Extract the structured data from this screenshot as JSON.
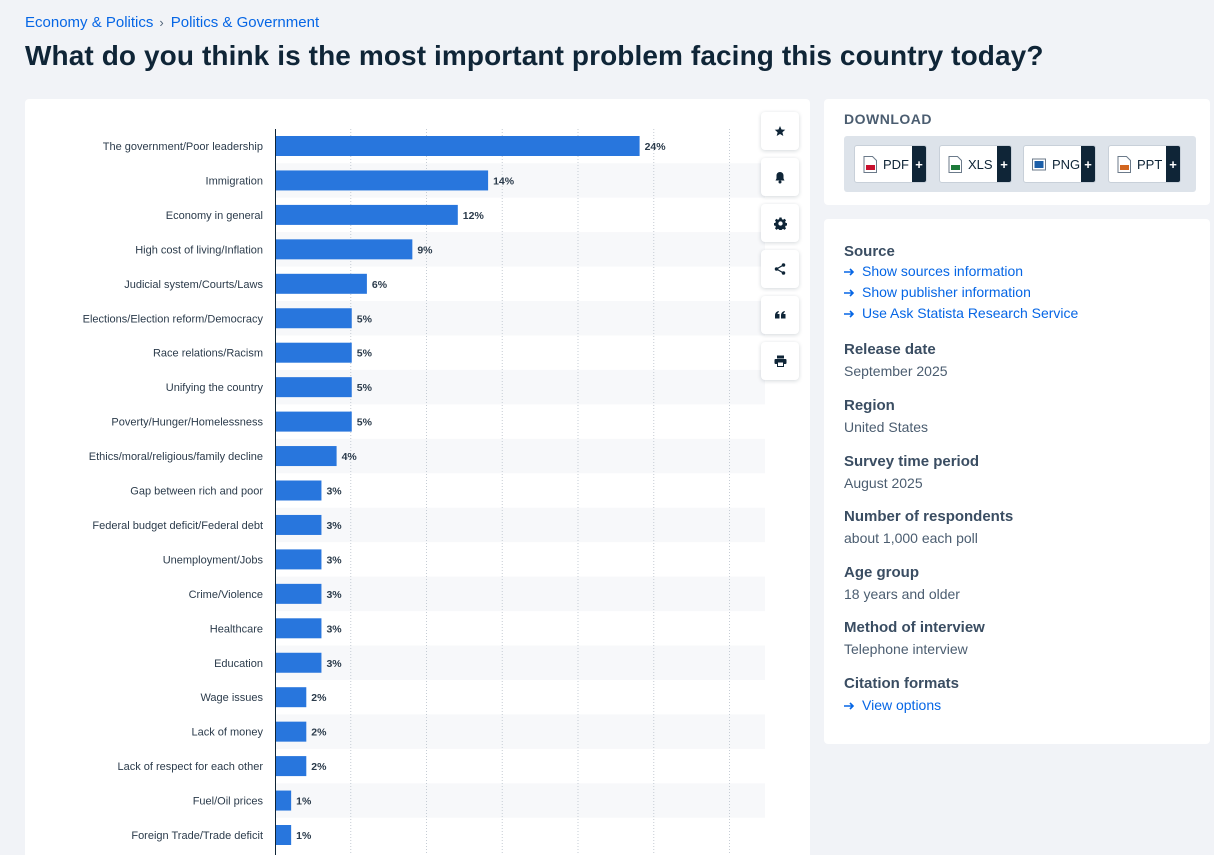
{
  "breadcrumb": {
    "items": [
      "Economy & Politics",
      "Politics & Government"
    ],
    "separator": "›"
  },
  "page_title": "What do you think is the most important problem facing this country today?",
  "toolbar": {
    "icons": [
      "star-icon",
      "bell-icon",
      "gear-icon",
      "share-icon",
      "quote-icon",
      "print-icon"
    ]
  },
  "download": {
    "title": "DOWNLOAD",
    "formats": [
      {
        "label": "PDF",
        "plus": "+",
        "icon": "pdf-file-icon",
        "color": "#c8102e"
      },
      {
        "label": "XLS",
        "plus": "+",
        "icon": "xls-file-icon",
        "color": "#1d7a3a"
      },
      {
        "label": "PNG",
        "plus": "+",
        "icon": "png-file-icon",
        "color": "#1c5fa8"
      },
      {
        "label": "PPT",
        "plus": "+",
        "icon": "ppt-file-icon",
        "color": "#d2651f"
      }
    ]
  },
  "info": {
    "source": {
      "heading": "Source",
      "links": [
        "Show sources information",
        "Show publisher information",
        "Use Ask Statista Research Service"
      ]
    },
    "release_date": {
      "heading": "Release date",
      "value": "September 2025"
    },
    "region": {
      "heading": "Region",
      "value": "United States"
    },
    "survey_period": {
      "heading": "Survey time period",
      "value": "August 2025"
    },
    "respondents": {
      "heading": "Number of respondents",
      "value": "about 1,000 each poll"
    },
    "age_group": {
      "heading": "Age group",
      "value": "18 years and older"
    },
    "method": {
      "heading": "Method of interview",
      "value": "Telephone interview"
    },
    "citation": {
      "heading": "Citation formats",
      "link": "View options"
    }
  },
  "colors": {
    "accent": "#0666e5",
    "bar": "#2876dd",
    "title": "#0f2537"
  },
  "chart_data": {
    "type": "bar",
    "orientation": "horizontal",
    "title": "",
    "xlabel": "",
    "ylabel": "",
    "value_suffix": "%",
    "xlim": [
      0,
      30
    ],
    "grid": true,
    "categories": [
      "The government/Poor leadership",
      "Immigration",
      "Economy in general",
      "High cost of living/Inflation",
      "Judicial system/Courts/Laws",
      "Elections/Election reform/Democracy",
      "Race relations/Racism",
      "Unifying the country",
      "Poverty/Hunger/Homelessness",
      "Ethics/moral/religious/family decline",
      "Gap between rich and poor",
      "Federal budget deficit/Federal debt",
      "Unemployment/Jobs",
      "Crime/Violence",
      "Healthcare",
      "Education",
      "Wage issues",
      "Lack of money",
      "Lack of respect for each other",
      "Fuel/Oil prices",
      "Foreign Trade/Trade deficit"
    ],
    "values": [
      24,
      14,
      12,
      9,
      6,
      5,
      5,
      5,
      5,
      4,
      3,
      3,
      3,
      3,
      3,
      3,
      2,
      2,
      2,
      1,
      1
    ]
  }
}
